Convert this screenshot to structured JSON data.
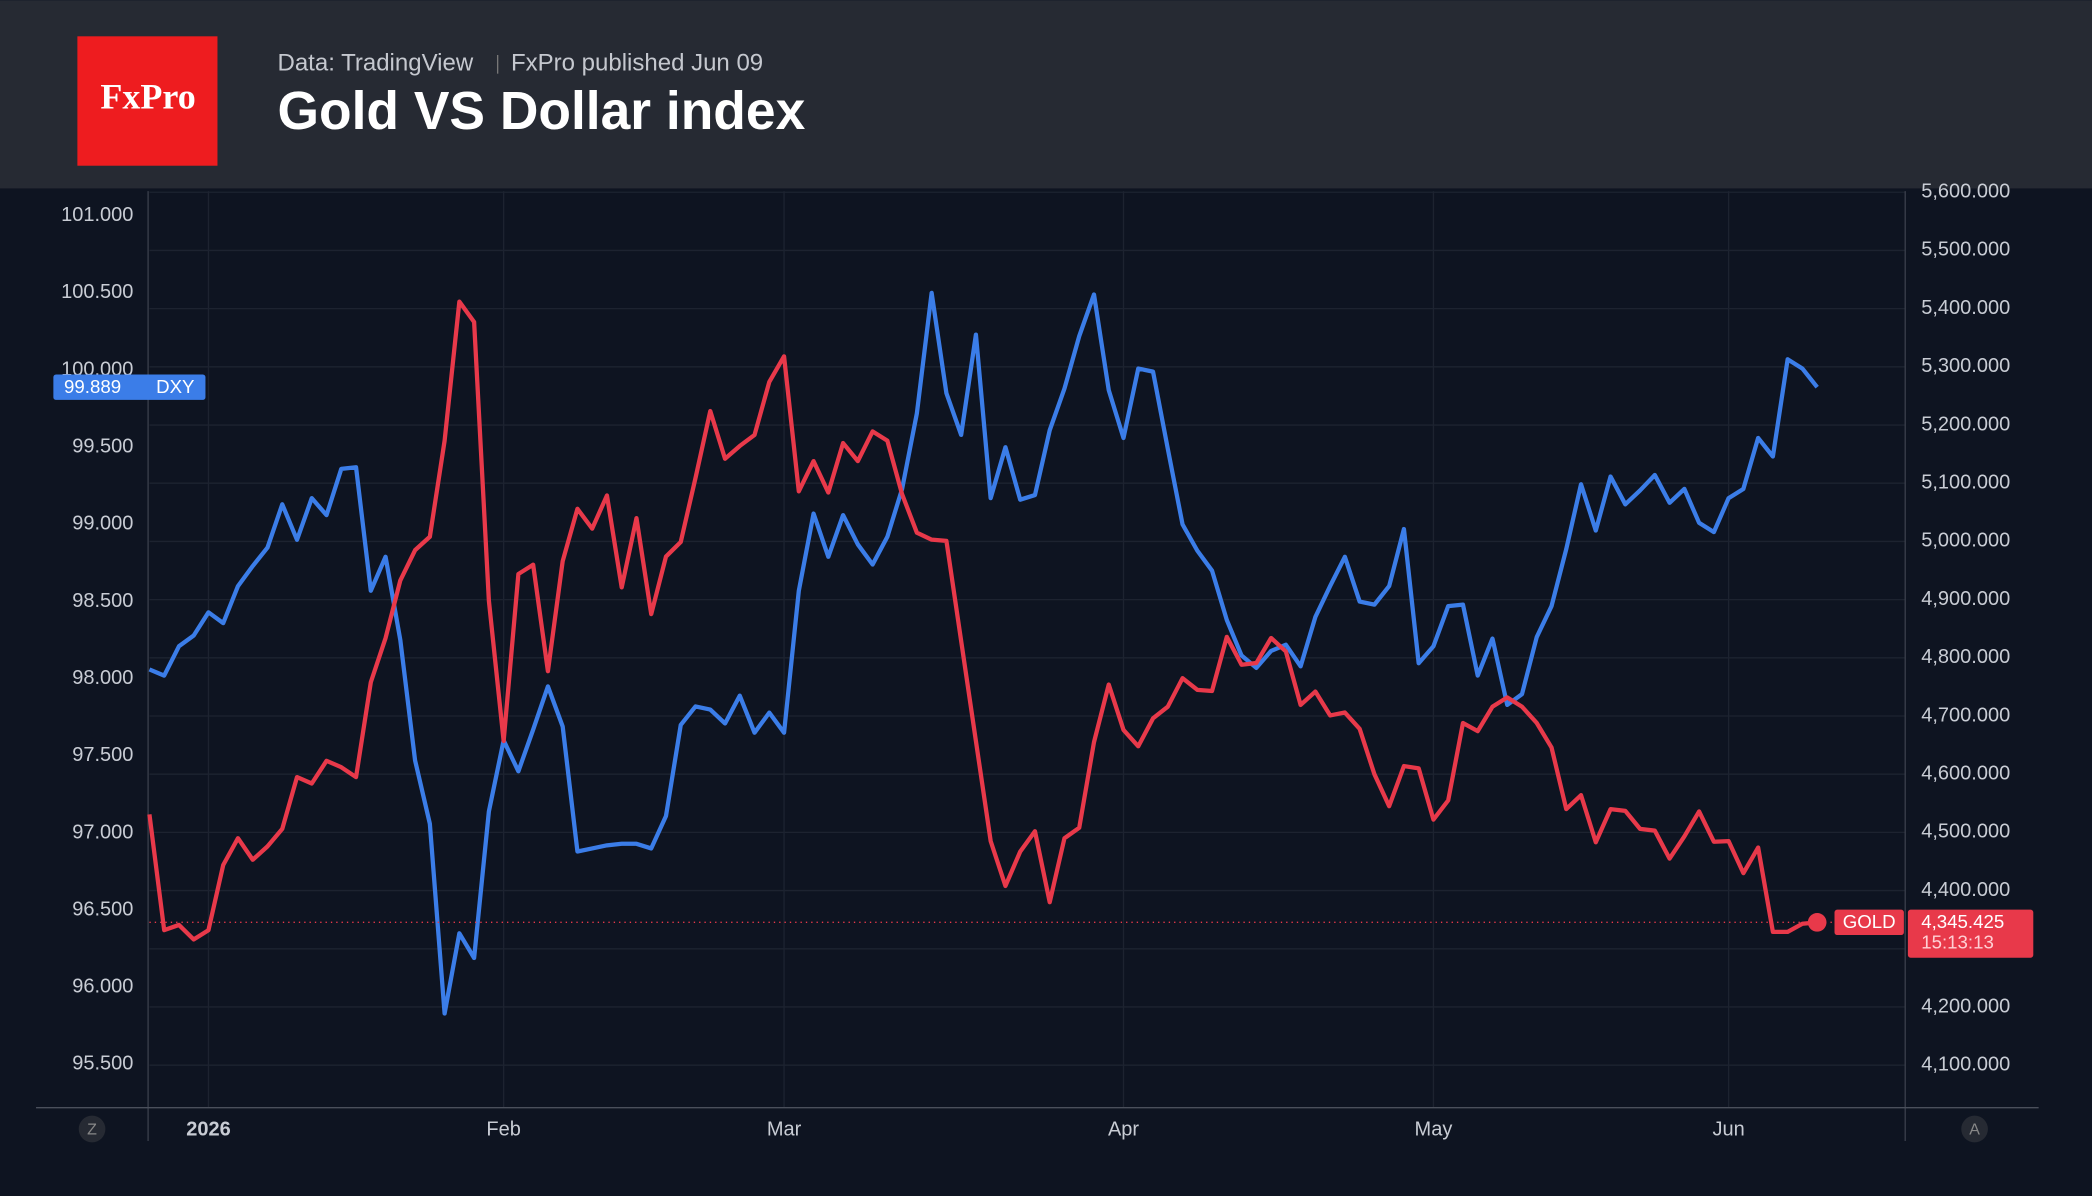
{
  "header": {
    "logo": "FxPro",
    "source": "Data: TradingView",
    "published": "FxPro published Jun 09"
  },
  "chart_data": {
    "type": "line",
    "title": "Gold VS Dollar index",
    "categories": [
      null,
      null,
      null,
      null,
      "2026",
      null,
      null,
      null,
      null,
      null,
      null,
      null,
      null,
      null,
      null,
      null,
      null,
      null,
      null,
      null,
      null,
      null,
      null,
      null,
      "Feb",
      null,
      null,
      null,
      null,
      null,
      null,
      null,
      null,
      null,
      null,
      null,
      null,
      null,
      null,
      null,
      null,
      null,
      null,
      "Mar",
      null,
      null,
      null,
      null,
      null,
      null,
      null,
      null,
      null,
      null,
      null,
      null,
      null,
      null,
      null,
      null,
      null,
      null,
      null,
      null,
      null,
      null,
      "Apr",
      null,
      null,
      null,
      null,
      null,
      null,
      null,
      null,
      null,
      null,
      null,
      null,
      null,
      null,
      null,
      null,
      null,
      null,
      null,
      null,
      "May",
      null,
      null,
      null,
      null,
      null,
      null,
      null,
      null,
      null,
      null,
      null,
      null,
      null,
      null,
      null,
      null,
      null,
      null,
      null,
      "Jun",
      null,
      null,
      null,
      null,
      null,
      null
    ],
    "series": [
      {
        "name": "DXY",
        "color": "#3b7de8",
        "axis": "y",
        "last_label": "99.889",
        "values": [
          98.06,
          98.02,
          98.21,
          98.28,
          98.43,
          98.36,
          98.6,
          98.73,
          98.85,
          99.13,
          98.9,
          99.17,
          99.06,
          99.36,
          99.37,
          98.57,
          98.79,
          98.25,
          97.47,
          97.06,
          95.83,
          96.35,
          96.19,
          97.14,
          97.6,
          97.4,
          97.67,
          97.95,
          97.69,
          96.88,
          96.9,
          96.92,
          96.93,
          96.93,
          96.9,
          97.11,
          97.7,
          97.82,
          97.8,
          97.71,
          97.89,
          97.65,
          97.78,
          97.65,
          98.57,
          99.07,
          98.79,
          99.06,
          98.87,
          98.74,
          98.92,
          99.23,
          99.72,
          100.5,
          99.85,
          99.58,
          100.23,
          99.17,
          99.5,
          99.16,
          99.19,
          99.61,
          99.88,
          100.22,
          100.49,
          99.87,
          99.56,
          100.01,
          99.99,
          99.49,
          99,
          98.83,
          98.7,
          98.38,
          98.15,
          98.07,
          98.18,
          98.22,
          98.08,
          98.4,
          98.6,
          98.79,
          98.5,
          98.48,
          98.6,
          98.97,
          98.1,
          98.21,
          98.47,
          98.48,
          98.02,
          98.26,
          97.83,
          97.9,
          98.27,
          98.47,
          98.84,
          99.26,
          98.96,
          99.31,
          99.13,
          99.22,
          99.32,
          99.14,
          99.23,
          99.01,
          98.95,
          99.17,
          99.23,
          99.56,
          99.44,
          100.07,
          100.01,
          99.889
        ]
      },
      {
        "name": "GOLD",
        "color": "#e8394a",
        "axis": "y2",
        "last_label": "4,345.425",
        "countdown": "15:13:13",
        "values": [
          4531,
          4332,
          4341,
          4316,
          4332,
          4444,
          4490,
          4453,
          4476,
          4506,
          4595,
          4584,
          4623,
          4612,
          4595,
          4758,
          4834,
          4933,
          4985,
          5008,
          5173,
          5412,
          5377,
          4898,
          4657,
          4944,
          4960,
          4777,
          4966,
          5056,
          5022,
          5079,
          4921,
          5040,
          4875,
          4974,
          4999,
          5109,
          5224,
          5142,
          5164,
          5183,
          5274,
          5318,
          5086,
          5138,
          5084,
          5169,
          5138,
          5189,
          5173,
          5081,
          5015,
          5003,
          5001,
          4829,
          4657,
          4485,
          4408,
          4467,
          4502,
          4380,
          4490,
          4508,
          4655,
          4754,
          4676,
          4648,
          4696,
          4716,
          4765,
          4745,
          4743,
          4836,
          4788,
          4791,
          4834,
          4811,
          4719,
          4742,
          4701,
          4706,
          4678,
          4600,
          4545,
          4614,
          4610,
          4522,
          4555,
          4688,
          4674,
          4716,
          4732,
          4716,
          4688,
          4646,
          4540,
          4564,
          4483,
          4540,
          4537,
          4506,
          4503,
          4455,
          4493,
          4536,
          4484,
          4485,
          4430,
          4474,
          4329,
          4329,
          4343,
          4345.425
        ]
      }
    ],
    "ylim": [
      95.22,
      101.16
    ],
    "yticks": [
      {
        "value": 95.5,
        "label": "95.500"
      },
      {
        "value": 96,
        "label": "96.000"
      },
      {
        "value": 96.5,
        "label": "96.500"
      },
      {
        "value": 97,
        "label": "97.000"
      },
      {
        "value": 97.5,
        "label": "97.500"
      },
      {
        "value": 98,
        "label": "98.000"
      },
      {
        "value": 98.5,
        "label": "98.500"
      },
      {
        "value": 99,
        "label": "99.000"
      },
      {
        "value": 99.5,
        "label": "99.500"
      },
      {
        "value": 100,
        "label": "100.000"
      },
      {
        "value": 100.5,
        "label": "100.500"
      },
      {
        "value": 101,
        "label": "101.000"
      }
    ],
    "y2lim": [
      4027,
      5602
    ],
    "y2ticks": [
      {
        "value": 4100,
        "label": "4,100.000"
      },
      {
        "value": 4200,
        "label": "4,200.000"
      },
      {
        "value": 4300,
        "label": "4,300.000"
      },
      {
        "value": 4400,
        "label": "4,400.000"
      },
      {
        "value": 4500,
        "label": "4,500.000"
      },
      {
        "value": 4600,
        "label": "4,600.000"
      },
      {
        "value": 4700,
        "label": "4,700.000"
      },
      {
        "value": 4800,
        "label": "4,800.000"
      },
      {
        "value": 4900,
        "label": "4,900.000"
      },
      {
        "value": 5000,
        "label": "5,000.000"
      },
      {
        "value": 5100,
        "label": "5,100.000"
      },
      {
        "value": 5200,
        "label": "5,200.000"
      },
      {
        "value": 5300,
        "label": "5,300.000"
      },
      {
        "value": 5400,
        "label": "5,400.000"
      },
      {
        "value": 5500,
        "label": "5,500.000"
      },
      {
        "value": 5600,
        "label": "5,600.000"
      }
    ],
    "grid": true,
    "buttons": [
      "Z",
      "A"
    ]
  }
}
